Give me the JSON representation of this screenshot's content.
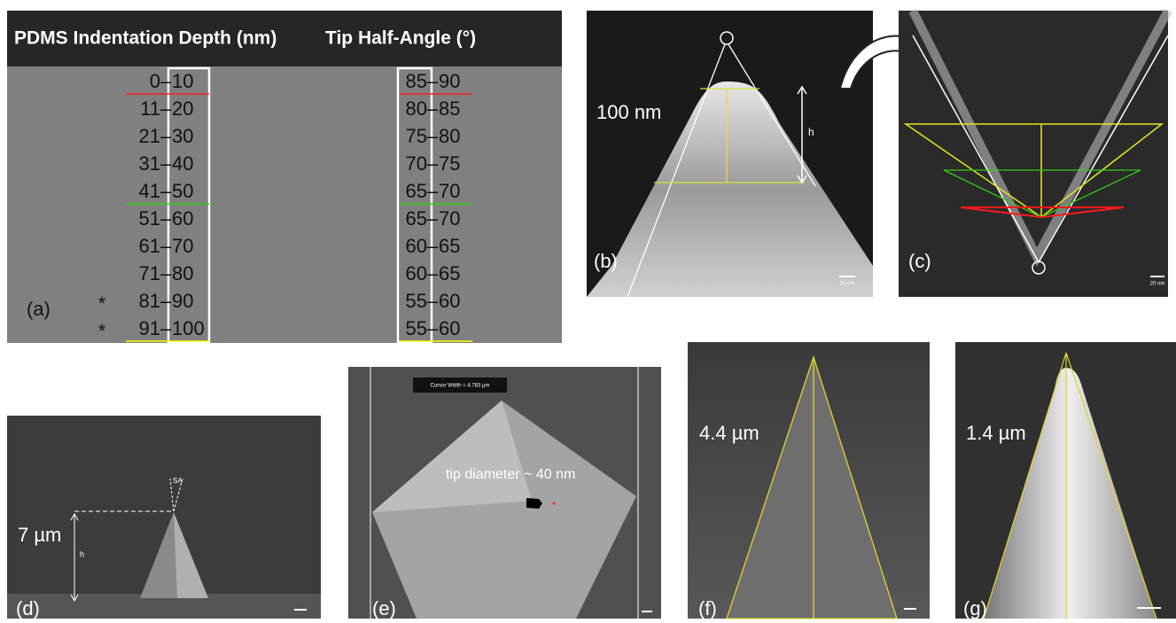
{
  "table": {
    "header": [
      "PDMS Indentation Depth (nm)",
      "Tip Half-Angle (°)"
    ],
    "separator": "–",
    "label": "(a)",
    "rows": [
      {
        "depth": [
          "0",
          "10"
        ],
        "angle": [
          "85",
          "90"
        ],
        "color": "#ff1a1a"
      },
      {
        "depth": [
          "11",
          "20"
        ],
        "angle": [
          "80",
          "85"
        ]
      },
      {
        "depth": [
          "21",
          "30"
        ],
        "angle": [
          "75",
          "80"
        ]
      },
      {
        "depth": [
          "31",
          "40"
        ],
        "angle": [
          "70",
          "75"
        ]
      },
      {
        "depth": [
          "41",
          "50"
        ],
        "angle": [
          "65",
          "70"
        ],
        "color": "#33cc11"
      },
      {
        "depth": [
          "51",
          "60"
        ],
        "angle": [
          "65",
          "70"
        ]
      },
      {
        "depth": [
          "61",
          "70"
        ],
        "angle": [
          "60",
          "65"
        ]
      },
      {
        "depth": [
          "71",
          "80"
        ],
        "angle": [
          "60",
          "65"
        ]
      },
      {
        "depth": [
          "81",
          "90"
        ],
        "angle": [
          "55",
          "60"
        ],
        "mark": "*"
      },
      {
        "depth": [
          "91",
          "100"
        ],
        "angle": [
          "55",
          "60"
        ],
        "mark": "*",
        "color": "#ffff00"
      }
    ]
  },
  "panels": {
    "b": {
      "label": "(b)",
      "size": "100 nm",
      "height": "h",
      "scale": "20 nm"
    },
    "c": {
      "label": "(c)",
      "scale": "20 nm"
    },
    "d": {
      "label": "(d)",
      "size": "7 µm",
      "height": "h",
      "angle": "SA"
    },
    "e": {
      "label": "(e)",
      "cursor": "Cursor Width = 4.783 µm",
      "note": "tip diameter ~ 40 nm"
    },
    "f": {
      "label": "(f)",
      "size": "4.4 µm"
    },
    "g": {
      "label": "(g)",
      "size": "1.4 µm"
    }
  }
}
